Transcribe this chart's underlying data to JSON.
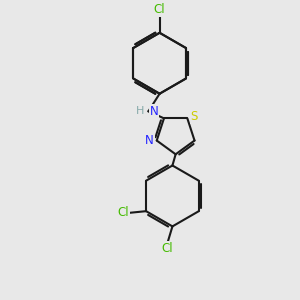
{
  "background_color": "#e8e8e8",
  "bond_color": "#1a1a1a",
  "N_color": "#2323ff",
  "S_color": "#cccc00",
  "Cl_color": "#44bb00",
  "bond_width": 1.5,
  "dpi": 100,
  "figsize": [
    3.0,
    3.0
  ],
  "xlim": [
    -2.5,
    2.5
  ],
  "ylim": [
    -4.5,
    4.5
  ]
}
